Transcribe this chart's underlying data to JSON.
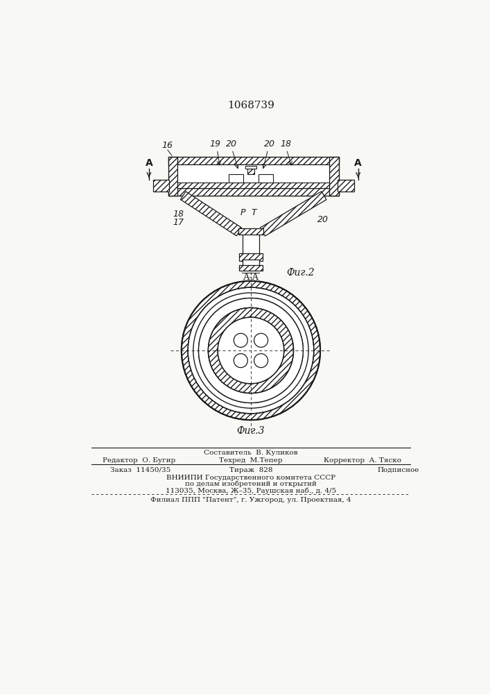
{
  "patent_number": "1068739",
  "fig2_label": "Фиг.2",
  "fig3_label": "Фиг.3",
  "section_label": "А-А",
  "label_16": "16",
  "label_19": "19",
  "label_20a": "20",
  "label_20b": "20",
  "label_18a": "18",
  "label_18b": "18",
  "label_17": "17",
  "label_20c": "20",
  "label_P": "Р",
  "label_T": "Т",
  "label_A_left": "А",
  "label_A_right": "А",
  "editor_line": "Редактор  О. Бугир",
  "composer_line1": "Составитель  В. Куликов",
  "techred_line": "Техред  М.Тепер",
  "corrector_line": "Корректор  А. Тяско",
  "order_line": "Заказ  11450/35",
  "tirazh_line": "Тираж  828",
  "podpisnoe_line": "Подписное",
  "vniip_line": "ВНИИПИ Государственного комитета СССР",
  "po_delam_line": "по делам изобретений и открытий",
  "address_line": "113035, Москва, Ж–35, Раушская наб., д. 4/5",
  "filial_line": "Филиал ППП \"Патент\", г. Ужгород, ул. Проектная, 4",
  "bg_color": "#f8f8f5",
  "line_color": "#1a1a1a"
}
